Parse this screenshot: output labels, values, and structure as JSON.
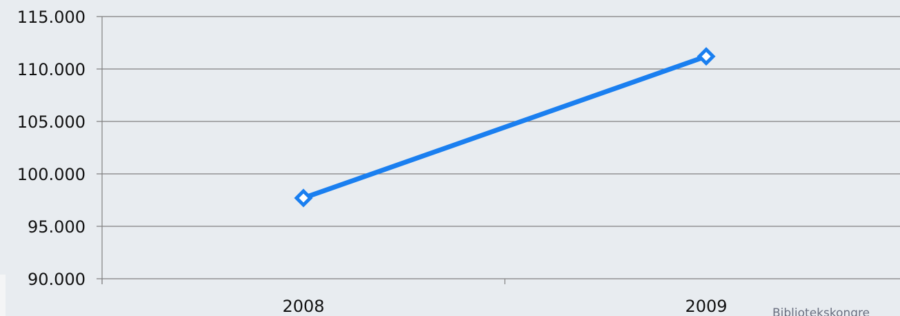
{
  "chart_data": {
    "type": "line",
    "categories": [
      "2008",
      "2009"
    ],
    "series": [
      {
        "values": [
          97700,
          111200
        ],
        "color": "#1a7ff0"
      }
    ],
    "ylim": [
      90000,
      115000
    ],
    "yticks": [
      90000,
      95000,
      100000,
      105000,
      110000,
      115000
    ],
    "ytick_labels": [
      "90.000",
      "95.000",
      "100.000",
      "105.000",
      "110.000",
      "115.000"
    ],
    "grid": true,
    "marker": "diamond"
  },
  "footer": {
    "text": "Bibliotekskongre"
  }
}
